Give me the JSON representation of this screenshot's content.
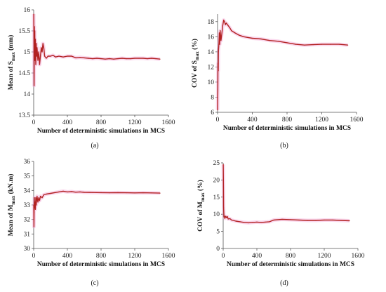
{
  "chart_data": [
    {
      "type": "line",
      "panel_label": "(a)",
      "xlabel": "Number of deterministic simulations in MCS",
      "ylabel": {
        "main": "Mean of S",
        "sub": "max",
        "tail": " (mm)"
      },
      "xlim": [
        0,
        1600
      ],
      "ylim": [
        13.5,
        16
      ],
      "xticks": [
        "0",
        "400",
        "800",
        "1200",
        "1600"
      ],
      "yticks": [
        "13.5",
        "14",
        "14.5",
        "15",
        "15.5",
        "16"
      ],
      "grid": false,
      "series": [
        {
          "color": "#b22222",
          "x": [
            1,
            3,
            5,
            8,
            10,
            13,
            16,
            20,
            25,
            30,
            35,
            40,
            50,
            60,
            70,
            80,
            90,
            100,
            110,
            120,
            130,
            150,
            170,
            200,
            230,
            260,
            300,
            350,
            400,
            450,
            500,
            550,
            600,
            650,
            700,
            750,
            800,
            850,
            900,
            950,
            1000,
            1050,
            1100,
            1150,
            1200,
            1250,
            1300,
            1350,
            1400,
            1450,
            1500
          ],
          "y": [
            15.9,
            15.2,
            14.2,
            15.6,
            14.8,
            15.5,
            14.8,
            15.3,
            14.7,
            15.2,
            14.9,
            15.1,
            14.8,
            15.0,
            14.7,
            14.9,
            15.1,
            15.0,
            15.2,
            15.1,
            14.9,
            14.85,
            14.9,
            14.9,
            14.92,
            14.88,
            14.9,
            14.88,
            14.9,
            14.9,
            14.86,
            14.87,
            14.86,
            14.85,
            14.84,
            14.85,
            14.84,
            14.83,
            14.84,
            14.83,
            14.84,
            14.85,
            14.84,
            14.84,
            14.85,
            14.85,
            14.85,
            14.84,
            14.85,
            14.84,
            14.83
          ]
        }
      ]
    },
    {
      "type": "line",
      "panel_label": "(b)",
      "xlabel": "Number of deterministic simulations in MCS",
      "ylabel": {
        "main": "COV of S",
        "sub": "max",
        "tail": " (%)"
      },
      "xlim": [
        0,
        1600
      ],
      "ylim": [
        6,
        19
      ],
      "xticks": [
        "0",
        "400",
        "800",
        "1200",
        "1600"
      ],
      "yticks": [
        "6",
        "8",
        "10",
        "12",
        "14",
        "16",
        "18"
      ],
      "grid": false,
      "series": [
        {
          "color": "#b22222",
          "x": [
            1,
            3,
            5,
            8,
            10,
            15,
            20,
            25,
            30,
            40,
            50,
            60,
            70,
            80,
            90,
            100,
            120,
            140,
            160,
            200,
            250,
            300,
            350,
            400,
            500,
            600,
            700,
            800,
            900,
            1000,
            1100,
            1200,
            1300,
            1400,
            1500
          ],
          "y": [
            6.3,
            9.0,
            12.5,
            11.5,
            14.0,
            15.0,
            16.5,
            15.0,
            16.8,
            15.5,
            16.5,
            17.5,
            18.2,
            18.0,
            17.6,
            17.8,
            17.5,
            17.2,
            16.8,
            16.5,
            16.2,
            16.0,
            15.9,
            15.8,
            15.7,
            15.5,
            15.4,
            15.2,
            15.0,
            14.9,
            14.95,
            15.0,
            15.0,
            15.0,
            14.9
          ]
        }
      ]
    },
    {
      "type": "line",
      "panel_label": "(c)",
      "xlabel": "Number of deterministic simulations in MCS",
      "ylabel": {
        "main": "Mean of M",
        "sub": "max",
        "tail": " (kN.m)"
      },
      "xlim": [
        0,
        1600
      ],
      "ylim": [
        30,
        36
      ],
      "xticks": [
        "0",
        "400",
        "800",
        "1200",
        "1600"
      ],
      "yticks": [
        "30",
        "31",
        "32",
        "33",
        "34",
        "35",
        "36"
      ],
      "grid": false,
      "series": [
        {
          "color": "#b22222",
          "x": [
            1,
            3,
            5,
            8,
            10,
            15,
            20,
            25,
            30,
            40,
            50,
            60,
            70,
            80,
            100,
            120,
            150,
            200,
            250,
            300,
            350,
            400,
            450,
            500,
            550,
            600,
            700,
            800,
            900,
            1000,
            1100,
            1200,
            1300,
            1400,
            1500
          ],
          "y": [
            33.0,
            31.5,
            32.5,
            33.5,
            32.8,
            33.2,
            32.7,
            33.5,
            33.0,
            33.6,
            33.2,
            33.5,
            33.3,
            33.6,
            33.5,
            33.7,
            33.75,
            33.8,
            33.85,
            33.9,
            33.95,
            33.9,
            33.92,
            33.88,
            33.9,
            33.87,
            33.86,
            33.85,
            33.84,
            33.85,
            33.84,
            33.83,
            33.84,
            33.83,
            33.82
          ]
        }
      ]
    },
    {
      "type": "line",
      "panel_label": "(d)",
      "xlabel": "Number of deterministic simulations in MCS",
      "ylabel": {
        "main": "COV of M",
        "sub": "max",
        "tail": " (%)"
      },
      "xlim": [
        0,
        1600
      ],
      "ylim": [
        0,
        25
      ],
      "xticks": [
        "0",
        "400",
        "800",
        "1200",
        "1600"
      ],
      "yticks": [
        "0",
        "5",
        "10",
        "15",
        "20",
        "25"
      ],
      "grid": false,
      "series": [
        {
          "color": "#b22222",
          "x": [
            1,
            3,
            5,
            8,
            10,
            15,
            20,
            30,
            40,
            50,
            60,
            80,
            100,
            150,
            200,
            250,
            300,
            350,
            400,
            450,
            500,
            550,
            600,
            700,
            800,
            900,
            1000,
            1100,
            1200,
            1300,
            1400,
            1500
          ],
          "y": [
            24.5,
            18.0,
            12.0,
            10.0,
            9.2,
            9.5,
            8.8,
            9.4,
            9.0,
            9.3,
            8.6,
            8.7,
            8.3,
            8.0,
            7.8,
            7.6,
            7.5,
            7.6,
            7.7,
            7.6,
            7.7,
            7.8,
            8.3,
            8.5,
            8.4,
            8.3,
            8.2,
            8.2,
            8.3,
            8.3,
            8.2,
            8.1
          ]
        }
      ]
    }
  ]
}
